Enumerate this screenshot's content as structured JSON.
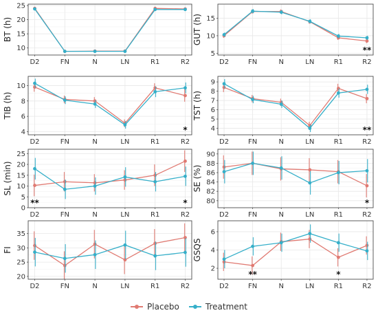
{
  "colors": {
    "placebo": "#E07A72",
    "treatment": "#35AFC9",
    "grid": "#e7e7e7",
    "frame": "#4d4d4d",
    "text": "#333333"
  },
  "legend": {
    "items": [
      {
        "label": "Placebo",
        "key": "placebo"
      },
      {
        "label": "Treatment",
        "key": "treatment"
      }
    ]
  },
  "chart_data": [
    {
      "type": "line",
      "ylabel": "BT (h)",
      "categories": [
        "D2",
        "FN",
        "N",
        "LN",
        "R1",
        "R2"
      ],
      "ylim": [
        7.5,
        25.5
      ],
      "yticks": [
        10,
        15,
        20,
        25
      ],
      "grid": true,
      "series": [
        {
          "name": "Placebo",
          "values": [
            24.0,
            8.8,
            8.9,
            8.9,
            24.0,
            23.8
          ],
          "err": [
            0.3,
            0.2,
            0.2,
            0.2,
            0.3,
            0.3
          ]
        },
        {
          "name": "Treatment",
          "values": [
            23.8,
            8.8,
            8.8,
            8.8,
            23.6,
            23.6
          ],
          "err": [
            0.3,
            0.2,
            0.2,
            0.2,
            0.3,
            0.3
          ]
        }
      ],
      "annotations": []
    },
    {
      "type": "line",
      "ylabel": "GUT (h)",
      "categories": [
        "D2",
        "FN",
        "N",
        "LN",
        "R1",
        "R2"
      ],
      "ylim": [
        4.5,
        19
      ],
      "yticks": [
        5,
        10,
        15
      ],
      "grid": true,
      "series": [
        {
          "name": "Placebo",
          "values": [
            10.0,
            16.9,
            16.9,
            14.0,
            9.4,
            8.5
          ],
          "err": [
            0.6,
            0.6,
            0.6,
            0.6,
            0.6,
            0.6
          ]
        },
        {
          "name": "Treatment",
          "values": [
            10.3,
            17.0,
            16.7,
            14.1,
            9.9,
            9.4
          ],
          "err": [
            0.6,
            0.6,
            0.6,
            0.6,
            0.6,
            0.6
          ]
        }
      ],
      "annotations": [
        {
          "category": "R2",
          "text": "**"
        }
      ]
    },
    {
      "type": "line",
      "ylabel": "TIB (h)",
      "categories": [
        "D2",
        "FN",
        "N",
        "LN",
        "R1",
        "R2"
      ],
      "ylim": [
        3.6,
        11.2
      ],
      "yticks": [
        4,
        6,
        8,
        10
      ],
      "grid": true,
      "series": [
        {
          "name": "Placebo",
          "values": [
            9.8,
            8.2,
            8.0,
            5.1,
            9.7,
            8.7
          ],
          "err": [
            0.6,
            0.5,
            0.5,
            0.5,
            0.6,
            0.8
          ]
        },
        {
          "name": "Treatment",
          "values": [
            10.3,
            8.1,
            7.6,
            4.9,
            9.2,
            9.7
          ],
          "err": [
            0.6,
            0.5,
            0.5,
            0.5,
            0.7,
            0.7
          ]
        }
      ],
      "annotations": [
        {
          "category": "R2",
          "text": "*"
        }
      ]
    },
    {
      "type": "line",
      "ylabel": "TST (h)",
      "categories": [
        "D2",
        "FN",
        "N",
        "LN",
        "R1",
        "R2"
      ],
      "ylim": [
        3.3,
        9.6
      ],
      "yticks": [
        4,
        5,
        6,
        7,
        8,
        9
      ],
      "grid": true,
      "series": [
        {
          "name": "Placebo",
          "values": [
            8.4,
            7.2,
            6.8,
            4.3,
            8.3,
            7.2
          ],
          "err": [
            0.5,
            0.4,
            0.4,
            0.4,
            0.5,
            0.5
          ]
        },
        {
          "name": "Treatment",
          "values": [
            8.8,
            7.1,
            6.6,
            4.0,
            7.8,
            8.2
          ],
          "err": [
            0.5,
            0.4,
            0.4,
            0.4,
            0.5,
            0.5
          ]
        }
      ],
      "annotations": [
        {
          "category": "R2",
          "text": "**"
        }
      ]
    },
    {
      "type": "line",
      "ylabel": "SL (min)",
      "categories": [
        "D2",
        "FN",
        "N",
        "LN",
        "R1",
        "R2"
      ],
      "ylim": [
        0,
        27
      ],
      "yticks": [
        0,
        5,
        10,
        15,
        20,
        25
      ],
      "grid": true,
      "series": [
        {
          "name": "Placebo",
          "values": [
            10.3,
            12.0,
            11.5,
            12.8,
            15.0,
            21.5
          ],
          "err": [
            5,
            4.5,
            4,
            4.5,
            5,
            5
          ]
        },
        {
          "name": "Treatment",
          "values": [
            18.0,
            8.5,
            10.0,
            14.2,
            12.0,
            14.5
          ],
          "err": [
            5,
            4.5,
            4,
            4.5,
            4.5,
            4.5
          ]
        }
      ],
      "annotations": [
        {
          "category": "D2",
          "text": "**"
        },
        {
          "category": "R2",
          "text": "*"
        }
      ]
    },
    {
      "type": "line",
      "ylabel": "SE (%)",
      "categories": [
        "D2",
        "FN",
        "N",
        "LN",
        "R1",
        "R2"
      ],
      "ylim": [
        78.5,
        91
      ],
      "yticks": [
        80,
        82,
        84,
        86,
        88,
        90
      ],
      "grid": true,
      "series": [
        {
          "name": "Placebo",
          "values": [
            87.2,
            88.0,
            86.8,
            86.6,
            86.2,
            83.2
          ],
          "err": [
            2.5,
            2.5,
            2.5,
            2.5,
            2.5,
            2.5
          ]
        },
        {
          "name": "Treatment",
          "values": [
            86.2,
            88.0,
            87.0,
            83.8,
            86.0,
            86.4
          ],
          "err": [
            2.5,
            2.5,
            2.5,
            2.5,
            2.5,
            2.5
          ]
        }
      ],
      "annotations": [
        {
          "category": "R2",
          "text": "*"
        }
      ]
    },
    {
      "type": "line",
      "ylabel": "FI",
      "categories": [
        "D2",
        "FN",
        "N",
        "LN",
        "R1",
        "R2"
      ],
      "ylim": [
        19,
        39.5
      ],
      "yticks": [
        20,
        25,
        30,
        35
      ],
      "grid": true,
      "series": [
        {
          "name": "Placebo",
          "values": [
            30.8,
            23.8,
            31.3,
            25.8,
            31.6,
            33.6
          ],
          "err": [
            5,
            5,
            5,
            5,
            5,
            5
          ]
        },
        {
          "name": "Treatment",
          "values": [
            28.5,
            26.3,
            27.6,
            31.0,
            27.2,
            28.4
          ],
          "err": [
            5,
            5,
            5,
            5,
            5,
            5
          ]
        }
      ],
      "annotations": []
    },
    {
      "type": "line",
      "ylabel": "GSQS",
      "categories": [
        "D2",
        "FN",
        "N",
        "LN",
        "R1",
        "R2"
      ],
      "ylim": [
        0.8,
        7.2
      ],
      "yticks": [
        2,
        4,
        6
      ],
      "grid": true,
      "series": [
        {
          "name": "Placebo",
          "values": [
            2.7,
            2.3,
            4.9,
            5.2,
            3.2,
            4.5
          ],
          "err": [
            1.0,
            1.0,
            1.0,
            1.0,
            1.0,
            1.0
          ]
        },
        {
          "name": "Treatment",
          "values": [
            3.0,
            4.4,
            4.8,
            5.8,
            4.8,
            3.9
          ],
          "err": [
            1.0,
            1.0,
            1.0,
            1.0,
            1.0,
            1.0
          ]
        }
      ],
      "annotations": [
        {
          "category": "FN",
          "text": "**"
        },
        {
          "category": "R1",
          "text": "*"
        }
      ]
    }
  ]
}
